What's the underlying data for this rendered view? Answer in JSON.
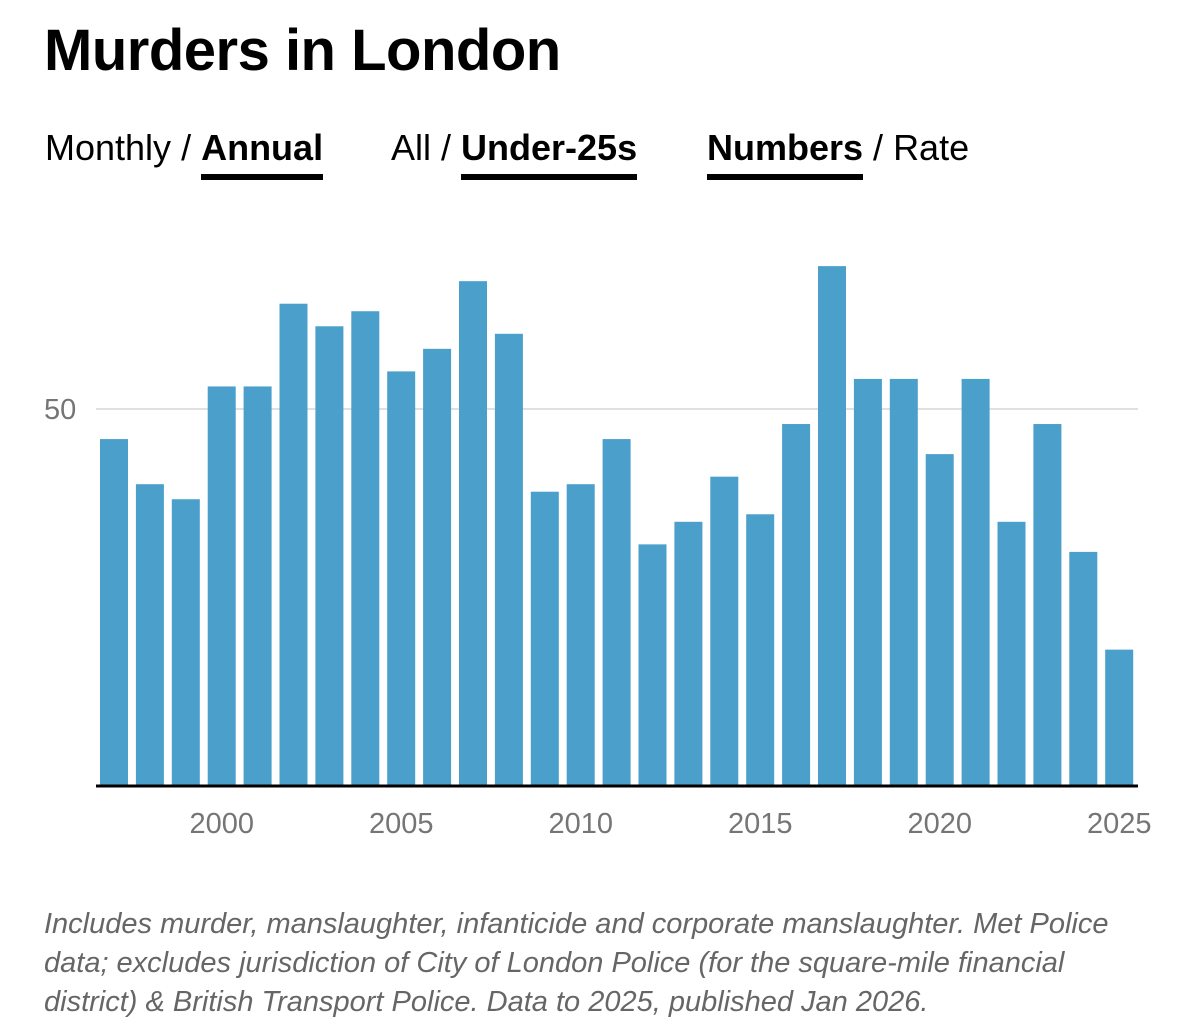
{
  "header": {
    "title": "Murders in London"
  },
  "toggles": {
    "period": {
      "options": [
        "Monthly",
        "Annual"
      ],
      "active": "Annual"
    },
    "group": {
      "options": [
        "All",
        "Under-25s"
      ],
      "active": "Under-25s"
    },
    "measure": {
      "options": [
        "Numbers",
        "Rate"
      ],
      "active": "Numbers"
    },
    "separator": "/"
  },
  "chart_data": {
    "type": "bar",
    "title": "Murders in London",
    "xlabel": "",
    "ylabel": "",
    "categories": [
      1997,
      1998,
      1999,
      2000,
      2001,
      2002,
      2003,
      2004,
      2005,
      2006,
      2007,
      2008,
      2009,
      2010,
      2011,
      2012,
      2013,
      2014,
      2015,
      2016,
      2017,
      2018,
      2019,
      2020,
      2021,
      2022,
      2023,
      2024,
      2025
    ],
    "values": [
      46,
      40,
      38,
      53,
      53,
      64,
      61,
      63,
      55,
      58,
      67,
      60,
      39,
      40,
      46,
      32,
      35,
      41,
      36,
      48,
      69,
      54,
      54,
      44,
      54,
      35,
      48,
      31,
      18
    ],
    "x_ticks": [
      2000,
      2005,
      2010,
      2015,
      2020,
      2025
    ],
    "y_ticks": [
      50
    ],
    "ylim": [
      0,
      75
    ],
    "grid": true,
    "bar_color": "#4a9fcb",
    "gridline_color": "#e0e0e0",
    "axis_color": "#000000",
    "tick_label_color": "#757575"
  },
  "footer": {
    "note": "Includes murder, manslaughter, infanticide and corporate manslaughter. Met Police data; excludes jurisdiction of City of London Police (for the square-mile financial district) & British Transport Police. Data to 2025, published Jan 2026."
  }
}
